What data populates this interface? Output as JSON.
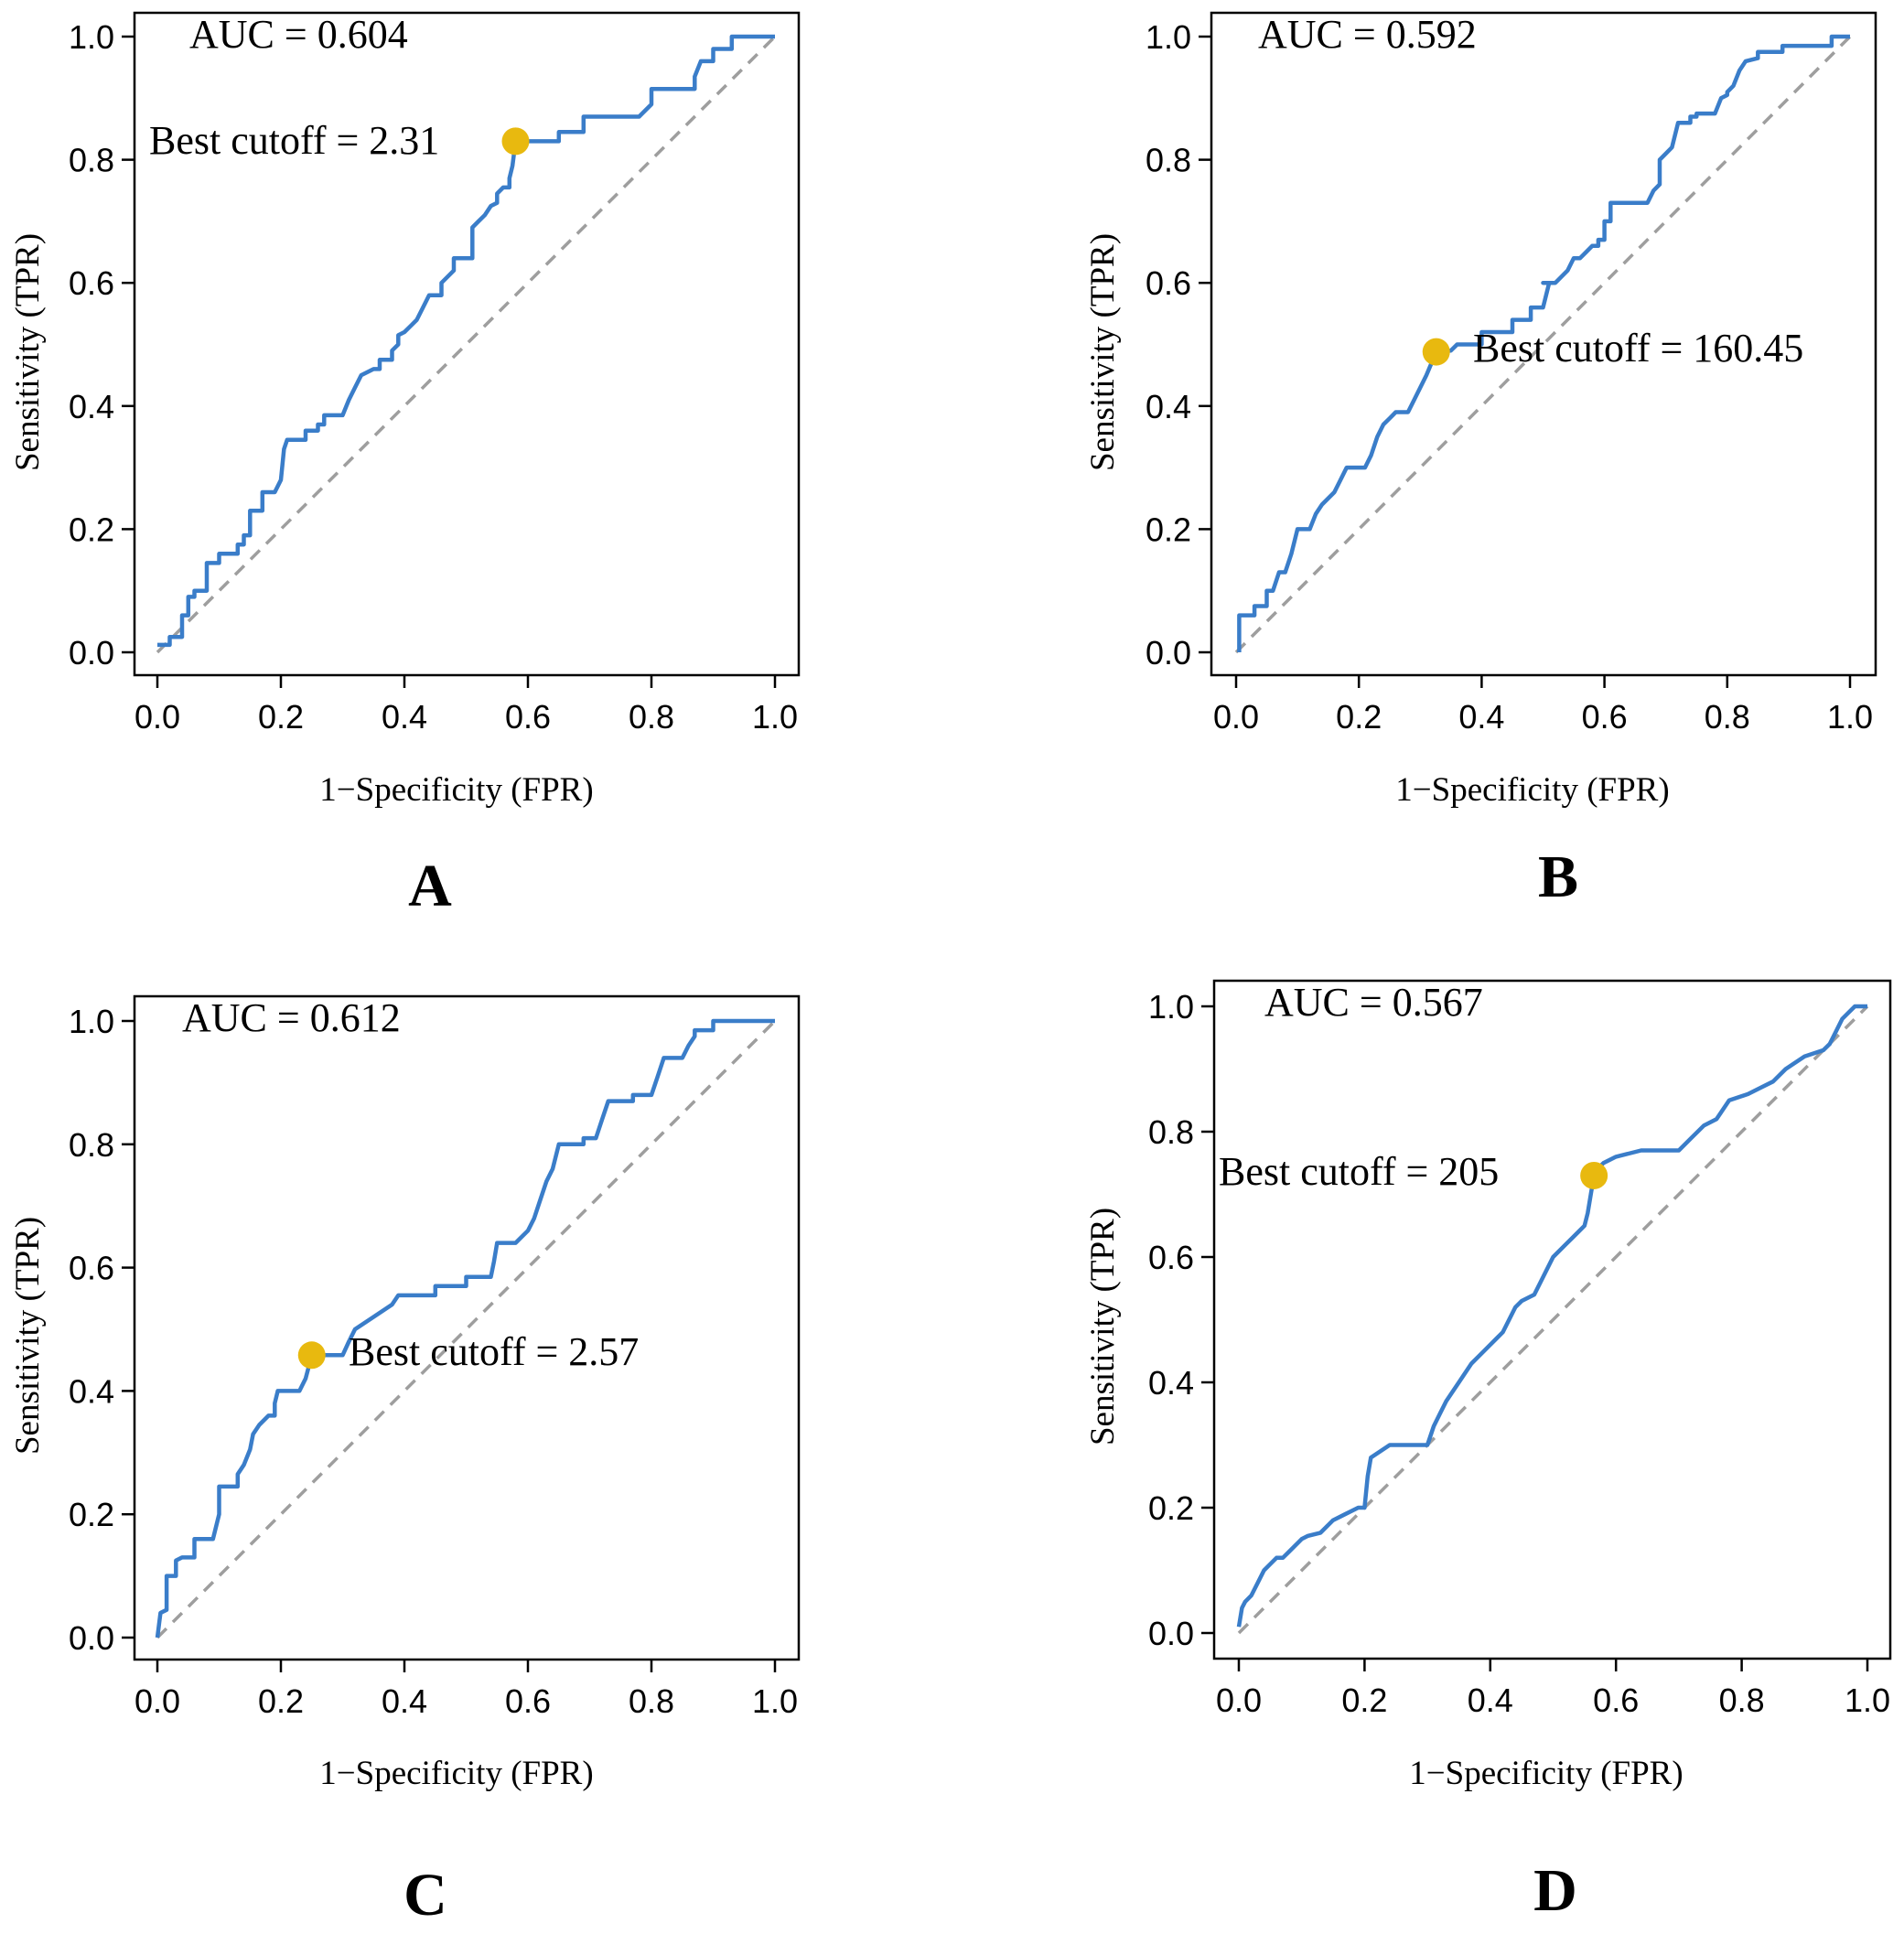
{
  "chart_data": [
    {
      "type": "line",
      "panel_label": "A",
      "xlabel": "1−Specificity (FPR)",
      "ylabel": "Sensitivity (TPR)",
      "xlim": [
        0,
        1
      ],
      "ylim": [
        0,
        1
      ],
      "xticks": [
        "0.0",
        "0.2",
        "0.4",
        "0.6",
        "0.8",
        "1.0"
      ],
      "yticks": [
        "0.0",
        "0.2",
        "0.4",
        "0.6",
        "0.8",
        "1.0"
      ],
      "auc_text": "AUC = 0.604",
      "cutoff_text": "Best cutoff = 2.31",
      "cutoff_point": [
        0.58,
        0.83
      ],
      "diagonal": true,
      "curve_color": "#3A7DC9",
      "point_color": "#E8B90F",
      "diagonal_color": "#9E9E9E",
      "roc": [
        [
          0,
          0.012
        ],
        [
          0.02,
          0.012
        ],
        [
          0.02,
          0.025
        ],
        [
          0.04,
          0.025
        ],
        [
          0.04,
          0.06
        ],
        [
          0.05,
          0.06
        ],
        [
          0.05,
          0.09
        ],
        [
          0.06,
          0.09
        ],
        [
          0.06,
          0.1
        ],
        [
          0.08,
          0.1
        ],
        [
          0.08,
          0.145
        ],
        [
          0.1,
          0.145
        ],
        [
          0.1,
          0.16
        ],
        [
          0.13,
          0.16
        ],
        [
          0.13,
          0.175
        ],
        [
          0.14,
          0.175
        ],
        [
          0.14,
          0.19
        ],
        [
          0.15,
          0.19
        ],
        [
          0.15,
          0.23
        ],
        [
          0.17,
          0.23
        ],
        [
          0.17,
          0.26
        ],
        [
          0.19,
          0.26
        ],
        [
          0.2,
          0.28
        ],
        [
          0.205,
          0.33
        ],
        [
          0.21,
          0.345
        ],
        [
          0.24,
          0.345
        ],
        [
          0.24,
          0.36
        ],
        [
          0.26,
          0.36
        ],
        [
          0.26,
          0.37
        ],
        [
          0.27,
          0.37
        ],
        [
          0.27,
          0.385
        ],
        [
          0.3,
          0.385
        ],
        [
          0.31,
          0.41
        ],
        [
          0.32,
          0.43
        ],
        [
          0.33,
          0.45
        ],
        [
          0.35,
          0.46
        ],
        [
          0.36,
          0.46
        ],
        [
          0.36,
          0.475
        ],
        [
          0.38,
          0.475
        ],
        [
          0.38,
          0.49
        ],
        [
          0.39,
          0.5
        ],
        [
          0.39,
          0.515
        ],
        [
          0.4,
          0.52
        ],
        [
          0.41,
          0.53
        ],
        [
          0.42,
          0.54
        ],
        [
          0.43,
          0.56
        ],
        [
          0.44,
          0.58
        ],
        [
          0.46,
          0.58
        ],
        [
          0.46,
          0.6
        ],
        [
          0.48,
          0.62
        ],
        [
          0.48,
          0.64
        ],
        [
          0.51,
          0.64
        ],
        [
          0.51,
          0.69
        ],
        [
          0.52,
          0.7
        ],
        [
          0.53,
          0.71
        ],
        [
          0.54,
          0.725
        ],
        [
          0.55,
          0.73
        ],
        [
          0.55,
          0.745
        ],
        [
          0.56,
          0.755
        ],
        [
          0.57,
          0.755
        ],
        [
          0.57,
          0.77
        ],
        [
          0.575,
          0.79
        ],
        [
          0.58,
          0.83
        ],
        [
          0.6,
          0.83
        ],
        [
          0.65,
          0.83
        ],
        [
          0.65,
          0.845
        ],
        [
          0.69,
          0.845
        ],
        [
          0.69,
          0.87
        ],
        [
          0.78,
          0.87
        ],
        [
          0.8,
          0.89
        ],
        [
          0.8,
          0.915
        ],
        [
          0.87,
          0.915
        ],
        [
          0.87,
          0.935
        ],
        [
          0.88,
          0.96
        ],
        [
          0.9,
          0.96
        ],
        [
          0.9,
          0.98
        ],
        [
          0.93,
          0.98
        ],
        [
          0.93,
          1
        ],
        [
          1,
          1
        ]
      ]
    },
    {
      "type": "line",
      "panel_label": "B",
      "xlabel": "1−Specificity (FPR)",
      "ylabel": "Sensitivity (TPR)",
      "xlim": [
        0,
        1
      ],
      "ylim": [
        0,
        1
      ],
      "xticks": [
        "0.0",
        "0.2",
        "0.4",
        "0.6",
        "0.8",
        "1.0"
      ],
      "yticks": [
        "0.0",
        "0.2",
        "0.4",
        "0.6",
        "0.8",
        "1.0"
      ],
      "auc_text": "AUC = 0.592",
      "cutoff_text": "Best  cutoff = 160.45",
      "cutoff_point": [
        0.326,
        0.488
      ],
      "diagonal": true,
      "curve_color": "#3A7DC9",
      "point_color": "#E8B90F",
      "diagonal_color": "#9E9E9E",
      "roc": [
        [
          0.005,
          0
        ],
        [
          0.005,
          0.06
        ],
        [
          0.03,
          0.06
        ],
        [
          0.03,
          0.075
        ],
        [
          0.05,
          0.075
        ],
        [
          0.05,
          0.1
        ],
        [
          0.06,
          0.1
        ],
        [
          0.07,
          0.13
        ],
        [
          0.08,
          0.13
        ],
        [
          0.09,
          0.16
        ],
        [
          0.1,
          0.2
        ],
        [
          0.12,
          0.2
        ],
        [
          0.13,
          0.225
        ],
        [
          0.14,
          0.24
        ],
        [
          0.16,
          0.26
        ],
        [
          0.17,
          0.28
        ],
        [
          0.18,
          0.3
        ],
        [
          0.21,
          0.3
        ],
        [
          0.22,
          0.32
        ],
        [
          0.23,
          0.35
        ],
        [
          0.24,
          0.37
        ],
        [
          0.25,
          0.38
        ],
        [
          0.26,
          0.39
        ],
        [
          0.28,
          0.39
        ],
        [
          0.29,
          0.41
        ],
        [
          0.31,
          0.45
        ],
        [
          0.326,
          0.488
        ],
        [
          0.35,
          0.49
        ],
        [
          0.36,
          0.5
        ],
        [
          0.4,
          0.5
        ],
        [
          0.4,
          0.52
        ],
        [
          0.45,
          0.52
        ],
        [
          0.45,
          0.54
        ],
        [
          0.48,
          0.54
        ],
        [
          0.48,
          0.56
        ],
        [
          0.5,
          0.56
        ],
        [
          0.51,
          0.6
        ],
        [
          0.5,
          0.6
        ],
        [
          0.52,
          0.6
        ],
        [
          0.54,
          0.62
        ],
        [
          0.55,
          0.64
        ],
        [
          0.56,
          0.64
        ],
        [
          0.57,
          0.65
        ],
        [
          0.58,
          0.66
        ],
        [
          0.59,
          0.66
        ],
        [
          0.59,
          0.67
        ],
        [
          0.6,
          0.67
        ],
        [
          0.6,
          0.7
        ],
        [
          0.61,
          0.7
        ],
        [
          0.61,
          0.73
        ],
        [
          0.67,
          0.73
        ],
        [
          0.68,
          0.75
        ],
        [
          0.69,
          0.76
        ],
        [
          0.69,
          0.8
        ],
        [
          0.7,
          0.81
        ],
        [
          0.71,
          0.82
        ],
        [
          0.72,
          0.86
        ],
        [
          0.74,
          0.86
        ],
        [
          0.74,
          0.87
        ],
        [
          0.75,
          0.87
        ],
        [
          0.75,
          0.875
        ],
        [
          0.78,
          0.875
        ],
        [
          0.79,
          0.9
        ],
        [
          0.8,
          0.905
        ],
        [
          0.8,
          0.91
        ],
        [
          0.81,
          0.92
        ],
        [
          0.82,
          0.945
        ],
        [
          0.83,
          0.96
        ],
        [
          0.85,
          0.965
        ],
        [
          0.85,
          0.975
        ],
        [
          0.89,
          0.975
        ],
        [
          0.89,
          0.985
        ],
        [
          0.97,
          0.985
        ],
        [
          0.97,
          1
        ],
        [
          1,
          1
        ]
      ]
    },
    {
      "type": "line",
      "panel_label": "C",
      "xlabel": "1−Specificity (FPR)",
      "ylabel": "Sensitivity (TPR)",
      "xlim": [
        0,
        1
      ],
      "ylim": [
        0,
        1
      ],
      "xticks": [
        "0.0",
        "0.2",
        "0.4",
        "0.6",
        "0.8",
        "1.0"
      ],
      "yticks": [
        "0.0",
        "0.2",
        "0.4",
        "0.6",
        "0.8",
        "1.0"
      ],
      "auc_text": "AUC = 0.612",
      "cutoff_text": "Best cutoff = 2.57",
      "cutoff_point": [
        0.25,
        0.458
      ],
      "diagonal": true,
      "curve_color": "#3A7DC9",
      "point_color": "#E8B90F",
      "diagonal_color": "#9E9E9E",
      "roc": [
        [
          0,
          0
        ],
        [
          0.005,
          0.04
        ],
        [
          0.015,
          0.045
        ],
        [
          0.015,
          0.1
        ],
        [
          0.03,
          0.1
        ],
        [
          0.03,
          0.125
        ],
        [
          0.04,
          0.13
        ],
        [
          0.06,
          0.13
        ],
        [
          0.06,
          0.16
        ],
        [
          0.09,
          0.16
        ],
        [
          0.1,
          0.2
        ],
        [
          0.1,
          0.245
        ],
        [
          0.13,
          0.245
        ],
        [
          0.13,
          0.265
        ],
        [
          0.14,
          0.28
        ],
        [
          0.15,
          0.305
        ],
        [
          0.155,
          0.33
        ],
        [
          0.165,
          0.345
        ],
        [
          0.18,
          0.36
        ],
        [
          0.19,
          0.36
        ],
        [
          0.19,
          0.38
        ],
        [
          0.195,
          0.4
        ],
        [
          0.23,
          0.4
        ],
        [
          0.24,
          0.42
        ],
        [
          0.25,
          0.458
        ],
        [
          0.3,
          0.458
        ],
        [
          0.31,
          0.48
        ],
        [
          0.32,
          0.5
        ],
        [
          0.35,
          0.52
        ],
        [
          0.38,
          0.54
        ],
        [
          0.39,
          0.555
        ],
        [
          0.45,
          0.555
        ],
        [
          0.45,
          0.57
        ],
        [
          0.5,
          0.57
        ],
        [
          0.5,
          0.585
        ],
        [
          0.54,
          0.585
        ],
        [
          0.545,
          0.61
        ],
        [
          0.55,
          0.64
        ],
        [
          0.58,
          0.64
        ],
        [
          0.6,
          0.66
        ],
        [
          0.61,
          0.68
        ],
        [
          0.62,
          0.71
        ],
        [
          0.63,
          0.74
        ],
        [
          0.64,
          0.76
        ],
        [
          0.65,
          0.8
        ],
        [
          0.69,
          0.8
        ],
        [
          0.69,
          0.81
        ],
        [
          0.71,
          0.81
        ],
        [
          0.72,
          0.84
        ],
        [
          0.73,
          0.87
        ],
        [
          0.77,
          0.87
        ],
        [
          0.77,
          0.88
        ],
        [
          0.8,
          0.88
        ],
        [
          0.81,
          0.91
        ],
        [
          0.82,
          0.94
        ],
        [
          0.85,
          0.94
        ],
        [
          0.86,
          0.96
        ],
        [
          0.87,
          0.975
        ],
        [
          0.87,
          0.985
        ],
        [
          0.9,
          0.985
        ],
        [
          0.9,
          1
        ],
        [
          1,
          1
        ]
      ]
    },
    {
      "type": "line",
      "panel_label": "D",
      "xlabel": "1−Specificity (FPR)",
      "ylabel": "Sensitivity (TPR)",
      "xlim": [
        0,
        1
      ],
      "ylim": [
        0,
        1
      ],
      "xticks": [
        "0.0",
        "0.2",
        "0.4",
        "0.6",
        "0.8",
        "1.0"
      ],
      "yticks": [
        "0.0",
        "0.2",
        "0.4",
        "0.6",
        "0.8",
        "1.0"
      ],
      "auc_text": "AUC = 0.567",
      "cutoff_text": "Best cutoff = 205",
      "cutoff_point": [
        0.565,
        0.73
      ],
      "diagonal": true,
      "curve_color": "#3A7DC9",
      "point_color": "#E8B90F",
      "diagonal_color": "#9E9E9E",
      "roc": [
        [
          0,
          0.01
        ],
        [
          0.005,
          0.04
        ],
        [
          0.01,
          0.05
        ],
        [
          0.02,
          0.06
        ],
        [
          0.03,
          0.08
        ],
        [
          0.04,
          0.1
        ],
        [
          0.05,
          0.11
        ],
        [
          0.06,
          0.12
        ],
        [
          0.07,
          0.12
        ],
        [
          0.08,
          0.13
        ],
        [
          0.1,
          0.15
        ],
        [
          0.11,
          0.155
        ],
        [
          0.13,
          0.16
        ],
        [
          0.15,
          0.18
        ],
        [
          0.17,
          0.19
        ],
        [
          0.19,
          0.2
        ],
        [
          0.2,
          0.2
        ],
        [
          0.205,
          0.25
        ],
        [
          0.21,
          0.28
        ],
        [
          0.24,
          0.3
        ],
        [
          0.3,
          0.3
        ],
        [
          0.31,
          0.33
        ],
        [
          0.32,
          0.35
        ],
        [
          0.33,
          0.37
        ],
        [
          0.35,
          0.4
        ],
        [
          0.37,
          0.43
        ],
        [
          0.39,
          0.45
        ],
        [
          0.41,
          0.47
        ],
        [
          0.42,
          0.48
        ],
        [
          0.43,
          0.5
        ],
        [
          0.44,
          0.52
        ],
        [
          0.45,
          0.53
        ],
        [
          0.47,
          0.54
        ],
        [
          0.48,
          0.56
        ],
        [
          0.49,
          0.58
        ],
        [
          0.5,
          0.6
        ],
        [
          0.52,
          0.62
        ],
        [
          0.53,
          0.63
        ],
        [
          0.54,
          0.64
        ],
        [
          0.55,
          0.65
        ],
        [
          0.555,
          0.67
        ],
        [
          0.56,
          0.7
        ],
        [
          0.565,
          0.73
        ],
        [
          0.57,
          0.74
        ],
        [
          0.58,
          0.75
        ],
        [
          0.6,
          0.76
        ],
        [
          0.62,
          0.765
        ],
        [
          0.64,
          0.77
        ],
        [
          0.7,
          0.77
        ],
        [
          0.72,
          0.79
        ],
        [
          0.74,
          0.81
        ],
        [
          0.76,
          0.82
        ],
        [
          0.78,
          0.85
        ],
        [
          0.81,
          0.86
        ],
        [
          0.83,
          0.87
        ],
        [
          0.85,
          0.88
        ],
        [
          0.87,
          0.9
        ],
        [
          0.9,
          0.92
        ],
        [
          0.93,
          0.93
        ],
        [
          0.94,
          0.94
        ],
        [
          0.95,
          0.96
        ],
        [
          0.96,
          0.98
        ],
        [
          0.97,
          0.99
        ],
        [
          0.98,
          1
        ],
        [
          1,
          1
        ]
      ]
    }
  ]
}
